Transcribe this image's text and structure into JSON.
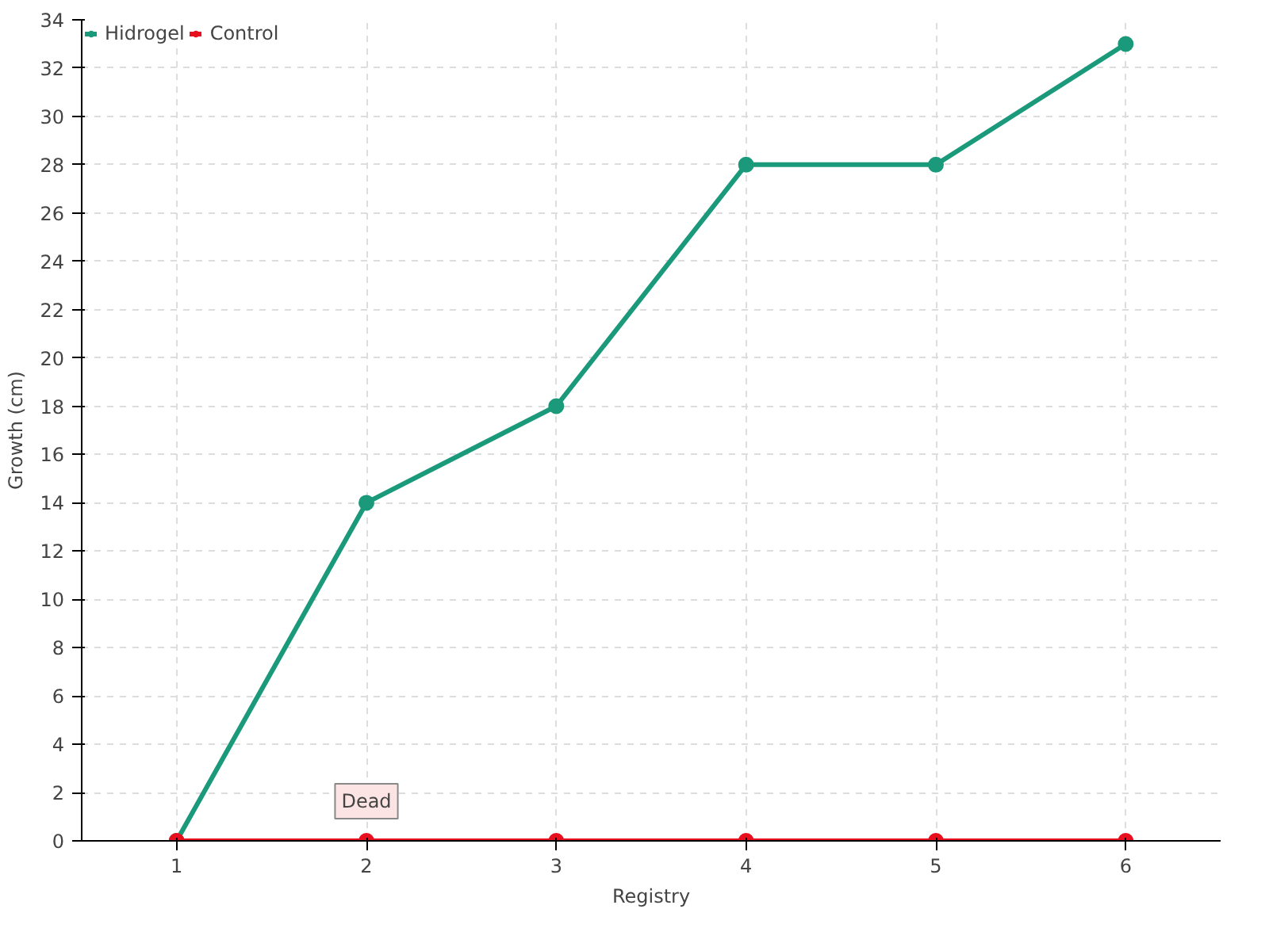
{
  "chart_data": {
    "type": "line",
    "xlabel": "Registry",
    "ylabel": "Growth (cm)",
    "x": [
      1,
      2,
      3,
      4,
      5,
      6
    ],
    "xlim": [
      0.5,
      6.5
    ],
    "xticks": [
      1,
      2,
      3,
      4,
      5,
      6
    ],
    "ylim": [
      0,
      34
    ],
    "yticks": [
      0,
      2,
      4,
      6,
      8,
      10,
      12,
      14,
      16,
      18,
      20,
      22,
      24,
      26,
      28,
      30,
      32,
      34
    ],
    "series": [
      {
        "name": "Hidrogel",
        "color": "#1a9a7a",
        "values": [
          0,
          14,
          18,
          28,
          28,
          33
        ]
      },
      {
        "name": "Control",
        "color": "#e8101e",
        "values": [
          0,
          0,
          0,
          0,
          0,
          0
        ]
      }
    ],
    "annotations": [
      {
        "text": "Dead",
        "x": 2,
        "y": 0
      }
    ],
    "grid": true,
    "legend": "top left",
    "marker": "circle",
    "line_style": "solid"
  }
}
